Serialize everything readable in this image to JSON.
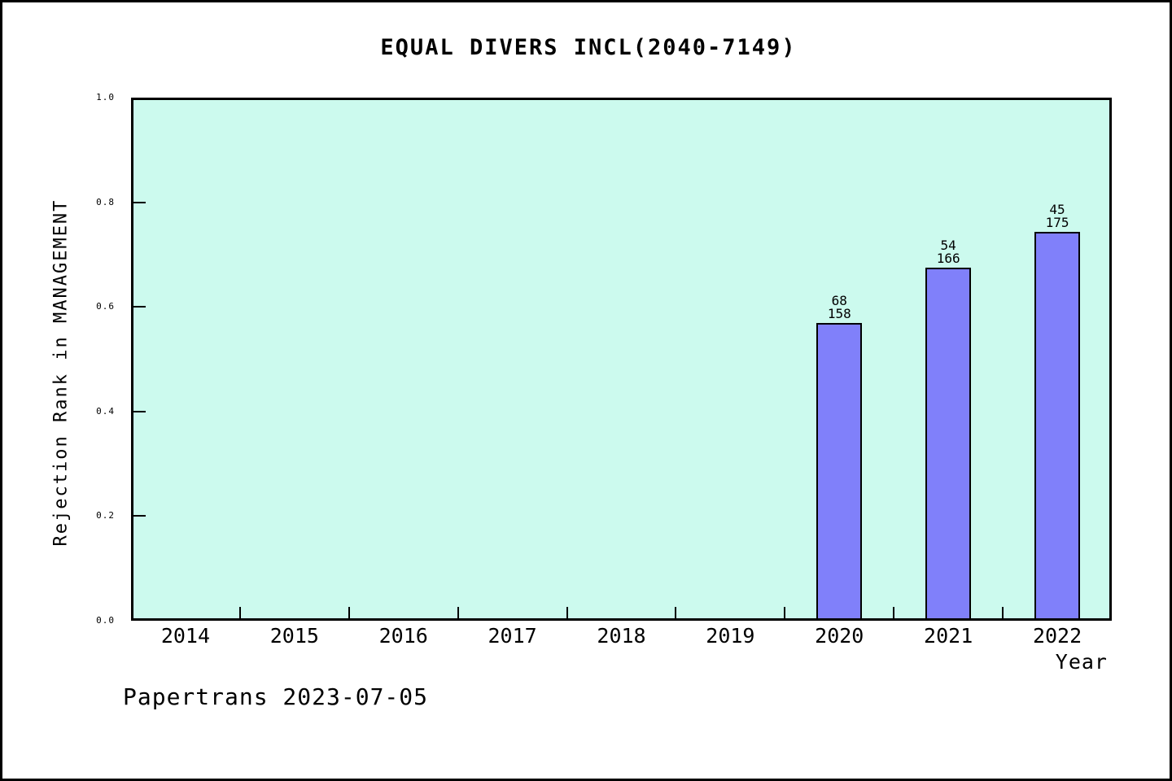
{
  "page": {
    "footer": "Papertrans 2023-07-05"
  },
  "chart_data": {
    "type": "bar",
    "title": "EQUAL DIVERS INCL(2040-7149)",
    "xlabel": "Year",
    "ylabel": "Rejection Rank in MANAGEMENT",
    "categories": [
      "2014",
      "2015",
      "2016",
      "2017",
      "2018",
      "2019",
      "2020",
      "2021",
      "2022"
    ],
    "values": [
      null,
      null,
      null,
      null,
      null,
      null,
      0.5696,
      0.6747,
      0.7429
    ],
    "bar_annotations": [
      null,
      null,
      null,
      null,
      null,
      null,
      [
        "68",
        "158"
      ],
      [
        "54",
        "166"
      ],
      [
        "45",
        "175"
      ]
    ],
    "ylim": [
      0.0,
      1.0
    ],
    "yticks": [
      0.0,
      0.2,
      0.4,
      0.6,
      0.8,
      1.0
    ],
    "grid": false,
    "legend": null,
    "colors": {
      "bar_fill": "#8080fa",
      "bar_border": "#000000",
      "plot_background": "#ccfaee",
      "axis": "#000000",
      "page_background": "#ffffff",
      "text": "#000000"
    }
  }
}
